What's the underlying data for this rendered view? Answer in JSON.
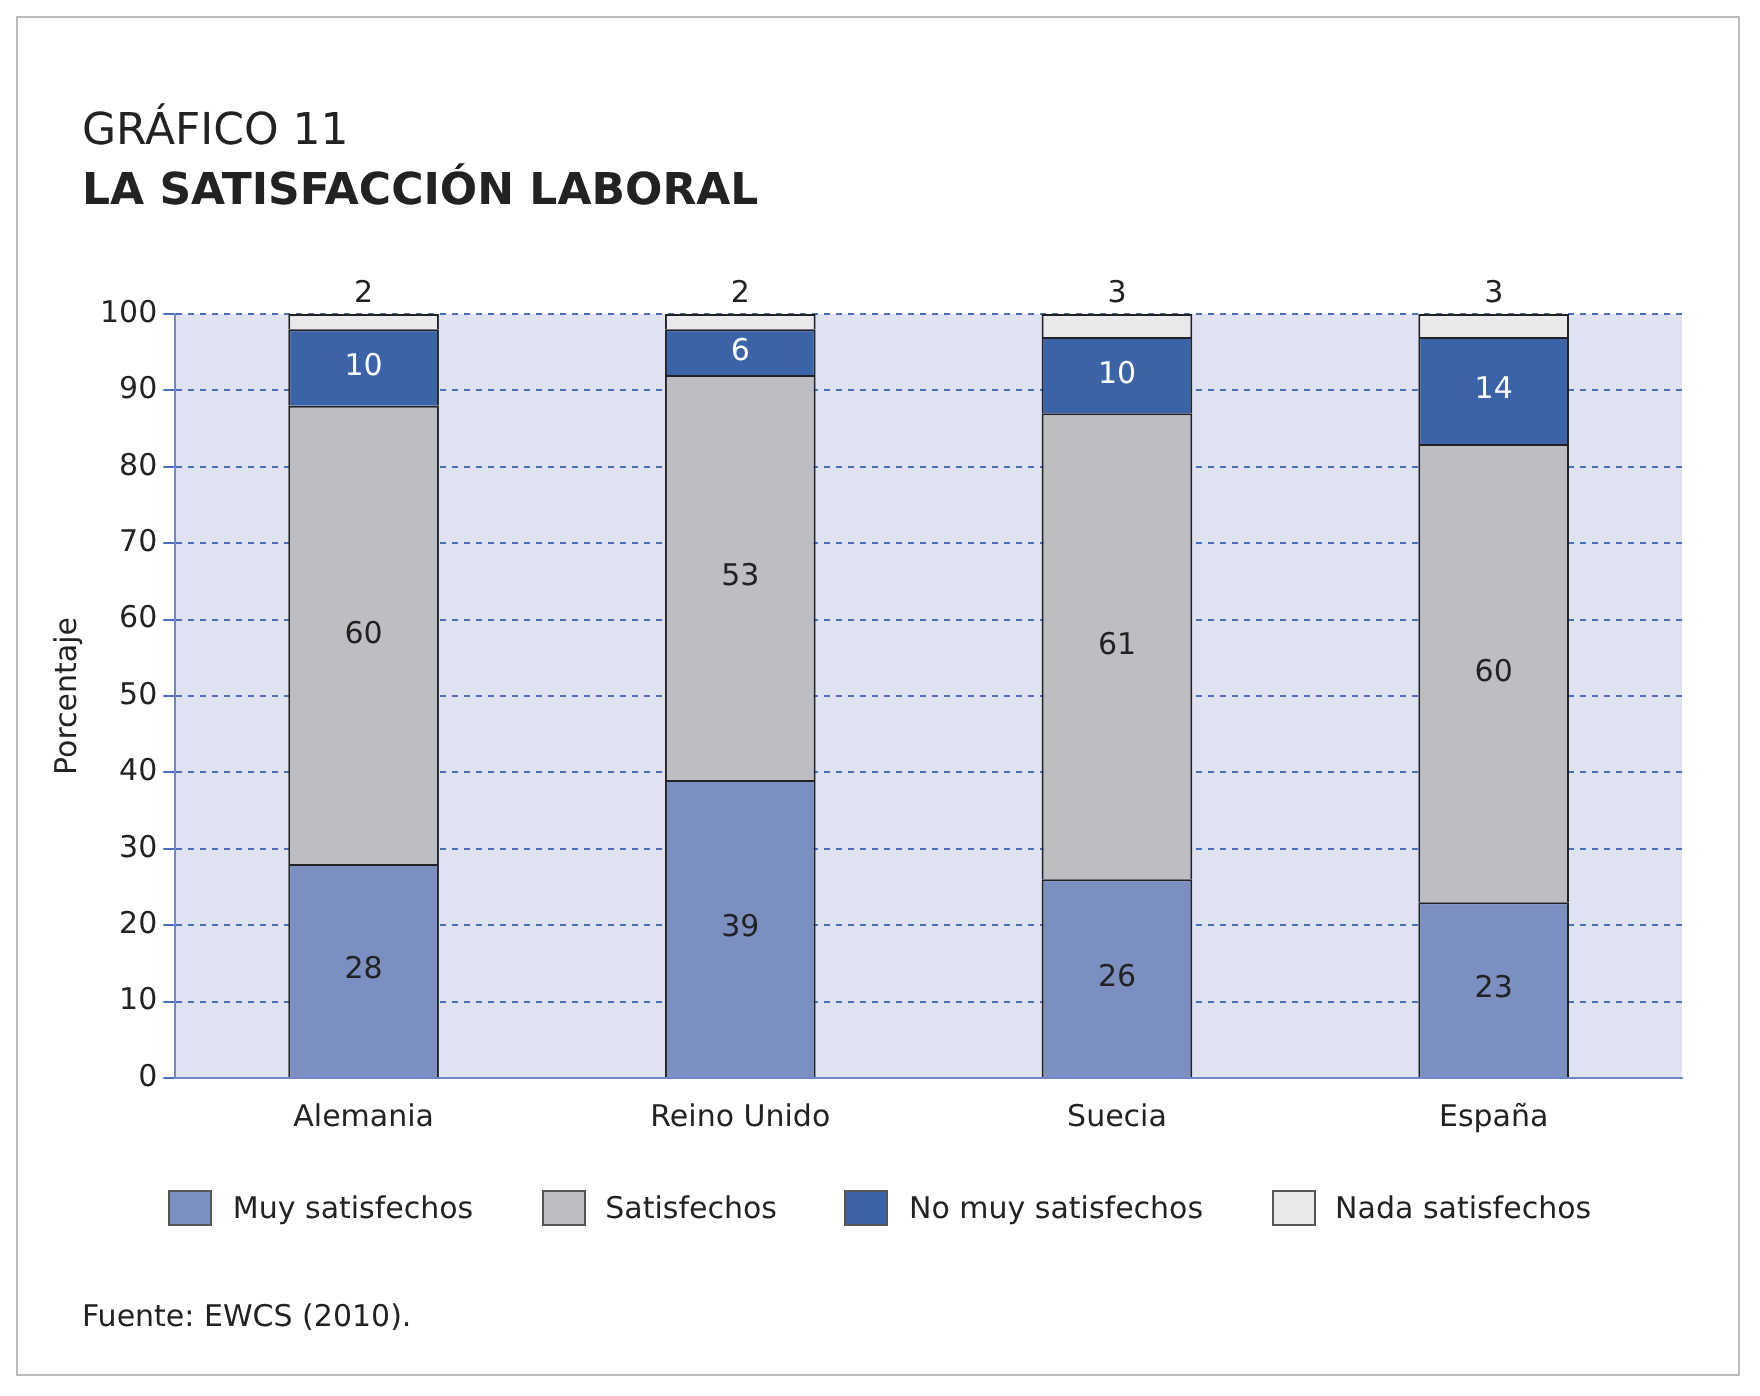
{
  "chart_data": {
    "type": "bar",
    "title": "GRÁFICO 11",
    "subtitle": "LA SATISFACCIÓN LABORAL",
    "ylabel": "Porcentaje",
    "categories": [
      "Alemania",
      "Reino Unido",
      "Suecia",
      "España"
    ],
    "stacked": true,
    "ylim": [
      0,
      100
    ],
    "yticks": [
      0,
      10,
      20,
      30,
      40,
      50,
      60,
      70,
      80,
      90,
      100
    ],
    "grid": "y",
    "legend": "bottom",
    "data_labels": true,
    "series": [
      {
        "name": "Muy satisfechos",
        "color": "#7b8fc1",
        "values": [
          28,
          39,
          26,
          23
        ]
      },
      {
        "name": "Satisfechos",
        "color": "#bdbec1",
        "values": [
          60,
          53,
          61,
          60
        ]
      },
      {
        "name": "No muy satisfechos",
        "color": "#3b63a8",
        "values": [
          10,
          6,
          10,
          14
        ]
      },
      {
        "name": "Nada satisfechos",
        "color": "#e9e9eb",
        "values": [
          2,
          2,
          3,
          3
        ]
      }
    ],
    "annotations": [
      "Fuente: EWCS (2010)."
    ]
  }
}
